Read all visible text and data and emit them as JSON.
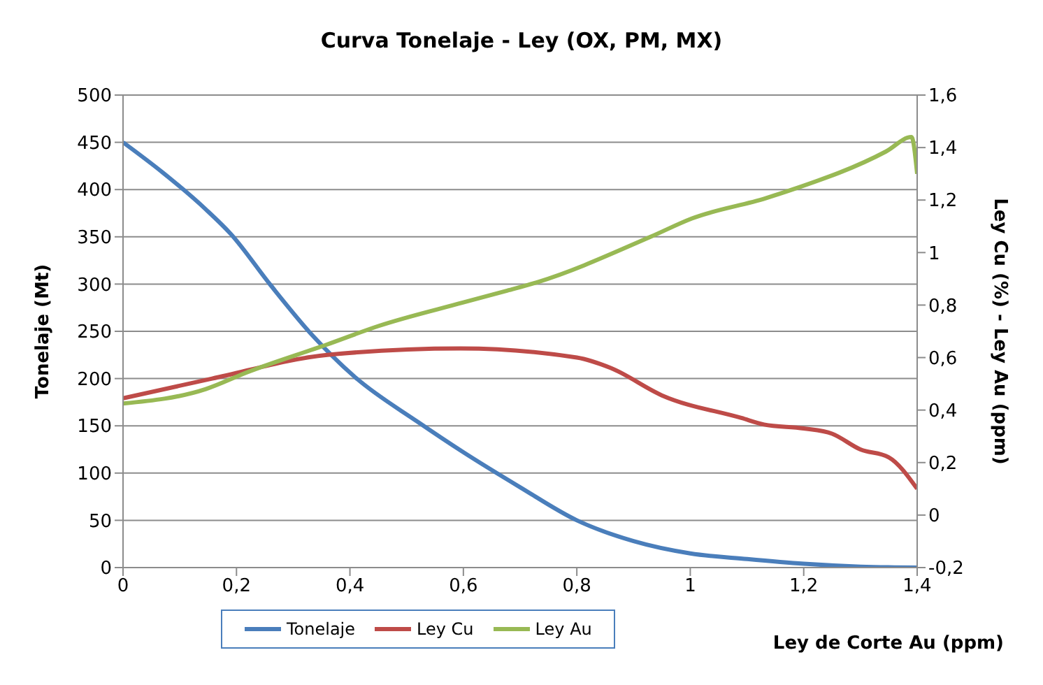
{
  "chart_data": {
    "type": "line",
    "title": "Curva Tonelaje - Ley (OX, PM, MX)",
    "xlabel": "Ley de Corte Au (ppm)",
    "ylabel": "Tonelaje (Mt)",
    "y2label": "Ley Cu (%) - Ley Au (ppm)",
    "xlim": [
      0,
      1.4
    ],
    "xticks": [
      {
        "value": 0,
        "label": "0"
      },
      {
        "value": 0.2,
        "label": "0,2"
      },
      {
        "value": 0.4,
        "label": "0,4"
      },
      {
        "value": 0.6,
        "label": "0,6"
      },
      {
        "value": 0.8,
        "label": "0,8"
      },
      {
        "value": 1,
        "label": "1"
      },
      {
        "value": 1.2,
        "label": "1,2"
      },
      {
        "value": 1.4,
        "label": "1,4"
      }
    ],
    "ylim": [
      0,
      500
    ],
    "yticks": [
      0,
      50,
      100,
      150,
      200,
      250,
      300,
      350,
      400,
      450,
      500
    ],
    "y2lim": [
      -0.2,
      1.6
    ],
    "y2ticks": [
      {
        "value": -0.2,
        "label": "-0,2"
      },
      {
        "value": 0,
        "label": "0"
      },
      {
        "value": 0.2,
        "label": "0,2"
      },
      {
        "value": 0.4,
        "label": "0,4"
      },
      {
        "value": 0.6,
        "label": "0,6"
      },
      {
        "value": 0.8,
        "label": "0,8"
      },
      {
        "value": 1,
        "label": "1"
      },
      {
        "value": 1.2,
        "label": "1,2"
      },
      {
        "value": 1.4,
        "label": "1,4"
      },
      {
        "value": 1.6,
        "label": "1,6"
      }
    ],
    "grid": "y",
    "legend": "bottom",
    "line_style": "solid",
    "series": [
      {
        "name": "Tonelaje",
        "color": "#4a7ebb",
        "x": [
          0,
          0.07,
          0.146,
          0.19,
          0.26,
          0.335,
          0.41,
          0.52,
          0.6,
          0.7,
          0.8,
          0.9,
          1,
          1.1,
          1.2,
          1.3,
          1.4
        ],
        "values": [
          450,
          418,
          379,
          353,
          299,
          245,
          201,
          154,
          122,
          85,
          50,
          28,
          15,
          9,
          4,
          1,
          0
        ]
      },
      {
        "name": "Ley Cu",
        "color": "#be4b48",
        "axis": "y2",
        "x": [
          0,
          0.157,
          0.36,
          0.595,
          0.8,
          0.86,
          0.95,
          1.09,
          1.13,
          1.2,
          1.25,
          1.3,
          1.35,
          1.4
        ],
        "values": [
          0.445,
          0.52,
          0.61,
          0.635,
          0.6,
          0.56,
          0.456,
          0.37,
          0.345,
          0.33,
          0.31,
          0.25,
          0.22,
          0.1
        ]
      },
      {
        "name": "Ley Au",
        "color": "#98b954",
        "axis": "y2",
        "x": [
          0,
          0.146,
          0.22,
          0.36,
          0.45,
          0.6,
          0.677,
          0.73,
          0.93,
          1.003,
          1.133,
          1.18,
          1.345,
          1.39,
          1.4
        ],
        "values": [
          0.425,
          0.48,
          0.545,
          0.65,
          0.72,
          0.81,
          0.855,
          0.887,
          1.06,
          1.13,
          1.207,
          1.24,
          1.385,
          1.44,
          1.3
        ]
      }
    ]
  }
}
